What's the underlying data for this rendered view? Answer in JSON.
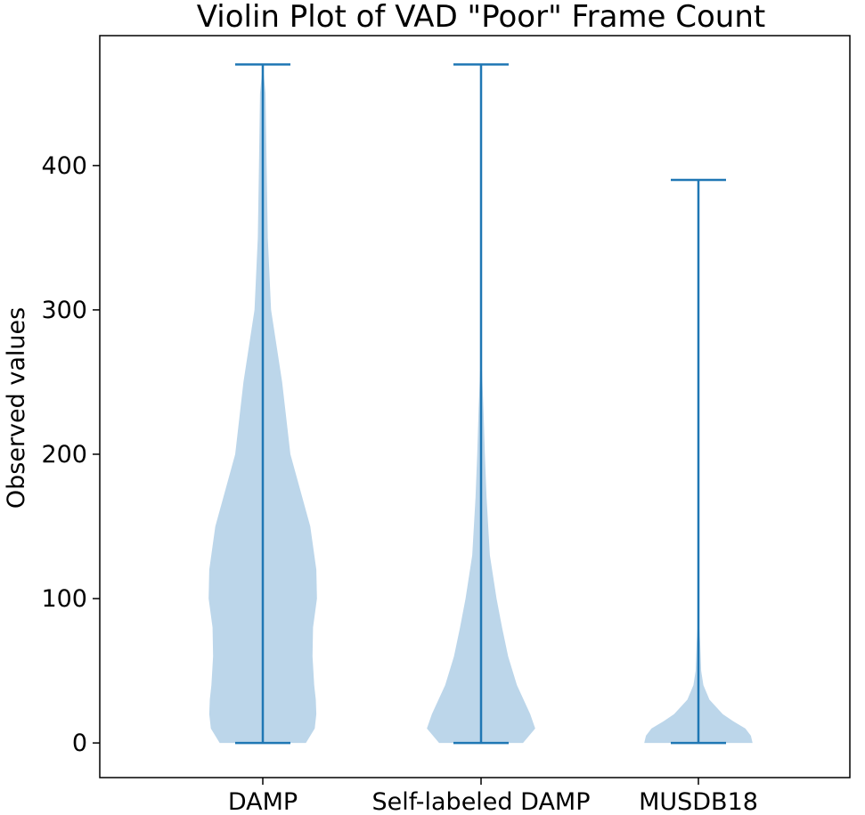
{
  "chart_data": {
    "type": "violin",
    "title": "Violin Plot of VAD \"Poor\" Frame Count",
    "xlabel": "",
    "ylabel": "Observed values",
    "categories": [
      "DAMP",
      "Self-labeled DAMP",
      "MUSDB18"
    ],
    "yticks": [
      0,
      100,
      200,
      300,
      400
    ],
    "ylim": [
      -24,
      490
    ],
    "grid": false,
    "colors": {
      "body": "#bcd6ea",
      "line": "#1f77b4"
    },
    "series": [
      {
        "category": "DAMP",
        "min": 0,
        "max": 470,
        "density": [
          [
            0,
            0.78
          ],
          [
            10,
            0.94
          ],
          [
            20,
            0.97
          ],
          [
            30,
            0.96
          ],
          [
            40,
            0.93
          ],
          [
            60,
            0.9
          ],
          [
            80,
            0.91
          ],
          [
            100,
            0.98
          ],
          [
            120,
            0.97
          ],
          [
            150,
            0.86
          ],
          [
            200,
            0.5
          ],
          [
            250,
            0.35
          ],
          [
            300,
            0.15
          ],
          [
            350,
            0.09
          ],
          [
            400,
            0.07
          ],
          [
            450,
            0.05
          ],
          [
            470,
            0.0
          ]
        ]
      },
      {
        "category": "Self-labeled DAMP",
        "min": 0,
        "max": 470,
        "density": [
          [
            0,
            0.76
          ],
          [
            10,
            0.98
          ],
          [
            20,
            0.89
          ],
          [
            40,
            0.65
          ],
          [
            60,
            0.49
          ],
          [
            80,
            0.38
          ],
          [
            100,
            0.28
          ],
          [
            130,
            0.16
          ],
          [
            170,
            0.1
          ],
          [
            200,
            0.07
          ],
          [
            230,
            0.045
          ],
          [
            260,
            0.015
          ],
          [
            300,
            0.0
          ]
        ]
      },
      {
        "category": "MUSDB18",
        "min": 0,
        "max": 390,
        "density": [
          [
            0,
            0.98
          ],
          [
            5,
            0.95
          ],
          [
            10,
            0.85
          ],
          [
            15,
            0.63
          ],
          [
            20,
            0.44
          ],
          [
            30,
            0.2
          ],
          [
            40,
            0.09
          ],
          [
            50,
            0.05
          ],
          [
            70,
            0.03
          ],
          [
            90,
            0.0
          ]
        ]
      }
    ]
  }
}
